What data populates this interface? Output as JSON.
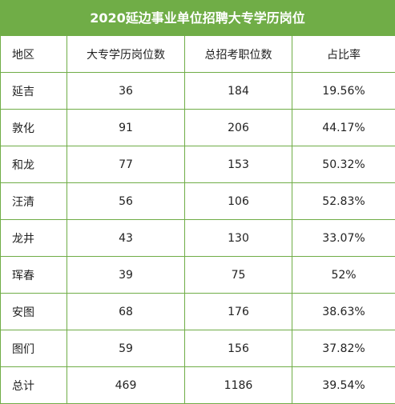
{
  "table": {
    "title": "2020延边事业单位招聘大专学历岗位",
    "headers": [
      "地区",
      "大专学历岗位数",
      "总招考职位数",
      "占比率"
    ],
    "rows": [
      [
        "延吉",
        "36",
        "184",
        "19.56%"
      ],
      [
        "敦化",
        "91",
        "206",
        "44.17%"
      ],
      [
        "和龙",
        "77",
        "153",
        "50.32%"
      ],
      [
        "汪清",
        "56",
        "106",
        "52.83%"
      ],
      [
        "龙井",
        "43",
        "130",
        "33.07%"
      ],
      [
        "珲春",
        "39",
        "75",
        "52%"
      ],
      [
        "安图",
        "68",
        "176",
        "38.63%"
      ],
      [
        "图们",
        "59",
        "156",
        "37.82%"
      ],
      [
        "总计",
        "469",
        "1186",
        "39.54%"
      ]
    ]
  },
  "colors": {
    "accent": "#70ad47"
  }
}
